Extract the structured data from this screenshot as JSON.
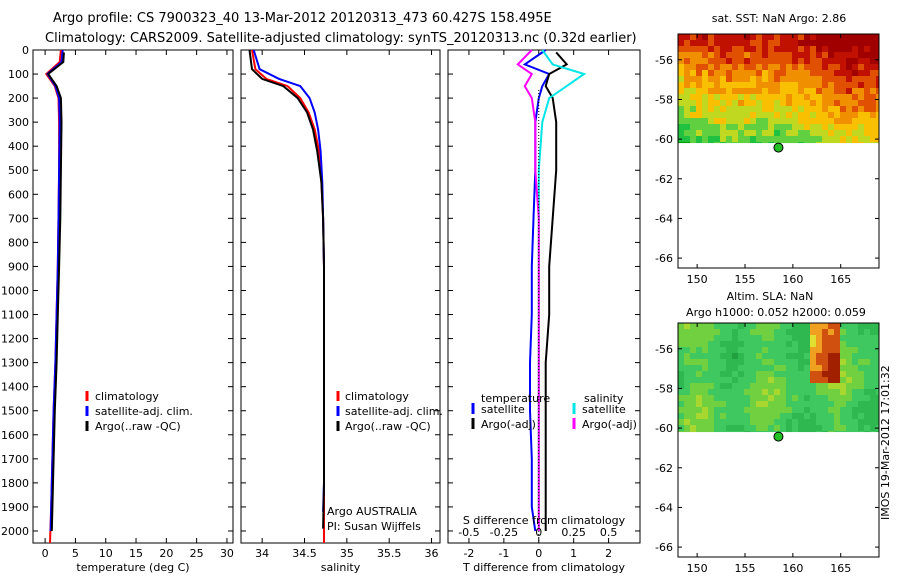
{
  "header": {
    "line1": "Argo profile: CS 7900323_40 13-Mar-2012 20120313_473 60.427S 158.495E",
    "line2": "Climatology: CARS2009. Satellite-adjusted climatology: synTS_20120313.nc (0.32d earlier)"
  },
  "side_label": "IMOS 19-Mar-2012 17:01:32",
  "colors": {
    "climatology": "#ff0000",
    "satellite": "#0000ff",
    "argo": "#000000",
    "sal_satellite": "#00e5e5",
    "sal_argo": "#ff00ff"
  },
  "chart_data": [
    {
      "id": "temperature",
      "type": "line",
      "xlabel": "temperature (deg C)",
      "ylabel": "",
      "xlim": [
        -2,
        31
      ],
      "ylim": [
        2050,
        0
      ],
      "xticks": [
        0,
        5,
        10,
        15,
        20,
        25,
        30
      ],
      "yticks": [
        0,
        100,
        200,
        300,
        400,
        500,
        600,
        700,
        800,
        900,
        1000,
        1100,
        1200,
        1300,
        1400,
        1500,
        1600,
        1700,
        1800,
        1900,
        2000
      ],
      "legend": [
        "climatology",
        "satellite-adj. clim.",
        "Argo(..raw -QC)"
      ],
      "series": [
        {
          "name": "climatology",
          "color": "red",
          "x": [
            2.6,
            2.4,
            0.2,
            1.6,
            2.2,
            2.3,
            2.3,
            2.2,
            2.1,
            1.9,
            1.7,
            1.4,
            1.2,
            1.0,
            0.8
          ],
          "y": [
            0,
            50,
            100,
            150,
            200,
            300,
            500,
            700,
            900,
            1100,
            1300,
            1500,
            1700,
            1900,
            2050
          ]
        },
        {
          "name": "satellite-adj. clim.",
          "color": "blue",
          "x": [
            2.9,
            2.7,
            0.4,
            1.7,
            2.3,
            2.4,
            2.3,
            2.2,
            2.1,
            1.9,
            1.7,
            1.4,
            1.2,
            1.0,
            0.9
          ],
          "y": [
            0,
            50,
            100,
            150,
            200,
            300,
            500,
            700,
            900,
            1100,
            1300,
            1500,
            1700,
            1900,
            2000
          ]
        },
        {
          "name": "Argo(..raw -QC)",
          "color": "black",
          "x": [
            3.1,
            3.0,
            0.5,
            1.9,
            2.6,
            2.7,
            2.6,
            2.5,
            2.3,
            2.1,
            1.9,
            1.6,
            1.4,
            1.2,
            1.1
          ],
          "y": [
            10,
            50,
            100,
            150,
            200,
            300,
            500,
            700,
            900,
            1100,
            1300,
            1500,
            1700,
            1900,
            2000
          ]
        }
      ]
    },
    {
      "id": "salinity",
      "type": "line",
      "xlabel": "salinity",
      "ylabel": "",
      "xlim": [
        33.75,
        36.1
      ],
      "ylim": [
        2050,
        0
      ],
      "xticks": [
        34,
        34.5,
        35,
        35.5,
        36
      ],
      "legend": [
        "climatology",
        "satellite-adj. clim.",
        "Argo(..raw -QC)"
      ],
      "annotation1": "Argo AUSTRALIA",
      "annotation2": "PI: Susan Wijffels",
      "series": [
        {
          "name": "climatology",
          "color": "red",
          "x": [
            33.88,
            33.92,
            34.05,
            34.3,
            34.45,
            34.55,
            34.62,
            34.67,
            34.7,
            34.72,
            34.73,
            34.73,
            34.73,
            34.73,
            34.73
          ],
          "y": [
            0,
            80,
            120,
            150,
            200,
            260,
            330,
            420,
            550,
            700,
            900,
            1200,
            1500,
            1800,
            2050
          ]
        },
        {
          "name": "satellite-adj. clim.",
          "color": "blue",
          "x": [
            33.9,
            33.97,
            34.2,
            34.45,
            34.56,
            34.62,
            34.66,
            34.69,
            34.71,
            34.72,
            34.73,
            34.73,
            34.73,
            34.73,
            34.72
          ],
          "y": [
            0,
            80,
            120,
            150,
            200,
            260,
            330,
            420,
            550,
            700,
            900,
            1200,
            1500,
            1800,
            1920
          ]
        },
        {
          "name": "Argo(..raw -QC)",
          "color": "black",
          "x": [
            33.85,
            33.88,
            34.0,
            34.25,
            34.42,
            34.53,
            34.6,
            34.65,
            34.7,
            34.72,
            34.73,
            34.73,
            34.73,
            34.73,
            34.72
          ],
          "y": [
            0,
            80,
            120,
            150,
            200,
            260,
            330,
            420,
            550,
            700,
            900,
            1200,
            1500,
            1800,
            1990
          ]
        }
      ]
    },
    {
      "id": "difference",
      "type": "line",
      "xlabel": "T difference from climatology",
      "top_label": "S difference from climatology",
      "xlim": [
        -2.6,
        2.9
      ],
      "ylim": [
        2050,
        0
      ],
      "xticks": [
        -2,
        -1,
        0,
        1,
        2
      ],
      "sticks_labels": [
        "-0.5",
        "-0.25",
        "0",
        "0.25",
        "0.5"
      ],
      "legend_temperature_title": "temperature",
      "legend_salinity_title": "salinity",
      "legend_satellite": "satellite",
      "legend_argo": "Argo(-adj)",
      "series": [
        {
          "name": "temperature satellite",
          "color": "blue",
          "x": [
            0.2,
            -0.4,
            0.3,
            0.1,
            0.0,
            -0.1,
            -0.1,
            -0.15,
            -0.2,
            -0.2,
            -0.25,
            -0.25,
            -0.2,
            -0.2,
            -0.1
          ],
          "y": [
            0,
            60,
            100,
            150,
            200,
            300,
            500,
            700,
            900,
            1100,
            1300,
            1500,
            1700,
            1900,
            2000
          ]
        },
        {
          "name": "temperature Argo(-adj)",
          "color": "black",
          "x": [
            0.5,
            0.8,
            0.3,
            0.2,
            0.4,
            0.5,
            0.5,
            0.4,
            0.3,
            0.3,
            0.2,
            0.2,
            0.2,
            0.2,
            0.2
          ],
          "y": [
            10,
            60,
            100,
            150,
            200,
            300,
            500,
            700,
            900,
            1100,
            1300,
            1500,
            1700,
            1900,
            2000
          ]
        },
        {
          "name": "salinity satellite",
          "color": "cyan",
          "x": [
            0.1,
            0.4,
            1.3,
            0.8,
            0.3,
            0.1,
            0.0,
            0.0,
            0.0,
            0.0,
            0.0,
            0.0,
            0.0,
            0.0,
            0.0
          ],
          "y": [
            0,
            60,
            100,
            150,
            200,
            300,
            500,
            700,
            900,
            1100,
            1300,
            1500,
            1700,
            1900,
            2000
          ]
        },
        {
          "name": "salinity Argo(-adj)",
          "color": "magenta",
          "x": [
            -0.2,
            -0.6,
            -0.2,
            -0.4,
            -0.2,
            -0.1,
            -0.1,
            0.0,
            0.0,
            0.0,
            0.0,
            0.0,
            0.0,
            0.0,
            0.0
          ],
          "y": [
            0,
            60,
            100,
            150,
            200,
            300,
            500,
            700,
            900,
            1100,
            1300,
            1500,
            1700,
            1900,
            2000
          ]
        }
      ]
    },
    {
      "id": "sst_map",
      "type": "heatmap",
      "title": "sat. SST: NaN Argo: 2.86",
      "xlim": [
        148,
        169
      ],
      "ylim": [
        -66.5,
        -54.7
      ],
      "xticks": [
        150,
        155,
        160,
        165
      ],
      "yticks": [
        -56,
        -58,
        -60,
        -62,
        -64,
        -66
      ],
      "data_extent_lat": [
        -54.7,
        -60.2
      ],
      "argo_position": {
        "lon": 158.495,
        "lat": -60.427
      }
    },
    {
      "id": "sla_map",
      "type": "heatmap",
      "title": "Altim. SLA: NaN",
      "subtitle": "Argo h1000: 0.052 h2000: 0.059",
      "xlim": [
        148,
        169
      ],
      "ylim": [
        -66.5,
        -54.7
      ],
      "xticks": [
        150,
        155,
        160,
        165
      ],
      "yticks": [
        -56,
        -58,
        -60,
        -62,
        -64,
        -66
      ],
      "data_extent_lat": [
        -54.7,
        -60.2
      ],
      "argo_position": {
        "lon": 158.495,
        "lat": -60.427
      }
    }
  ]
}
